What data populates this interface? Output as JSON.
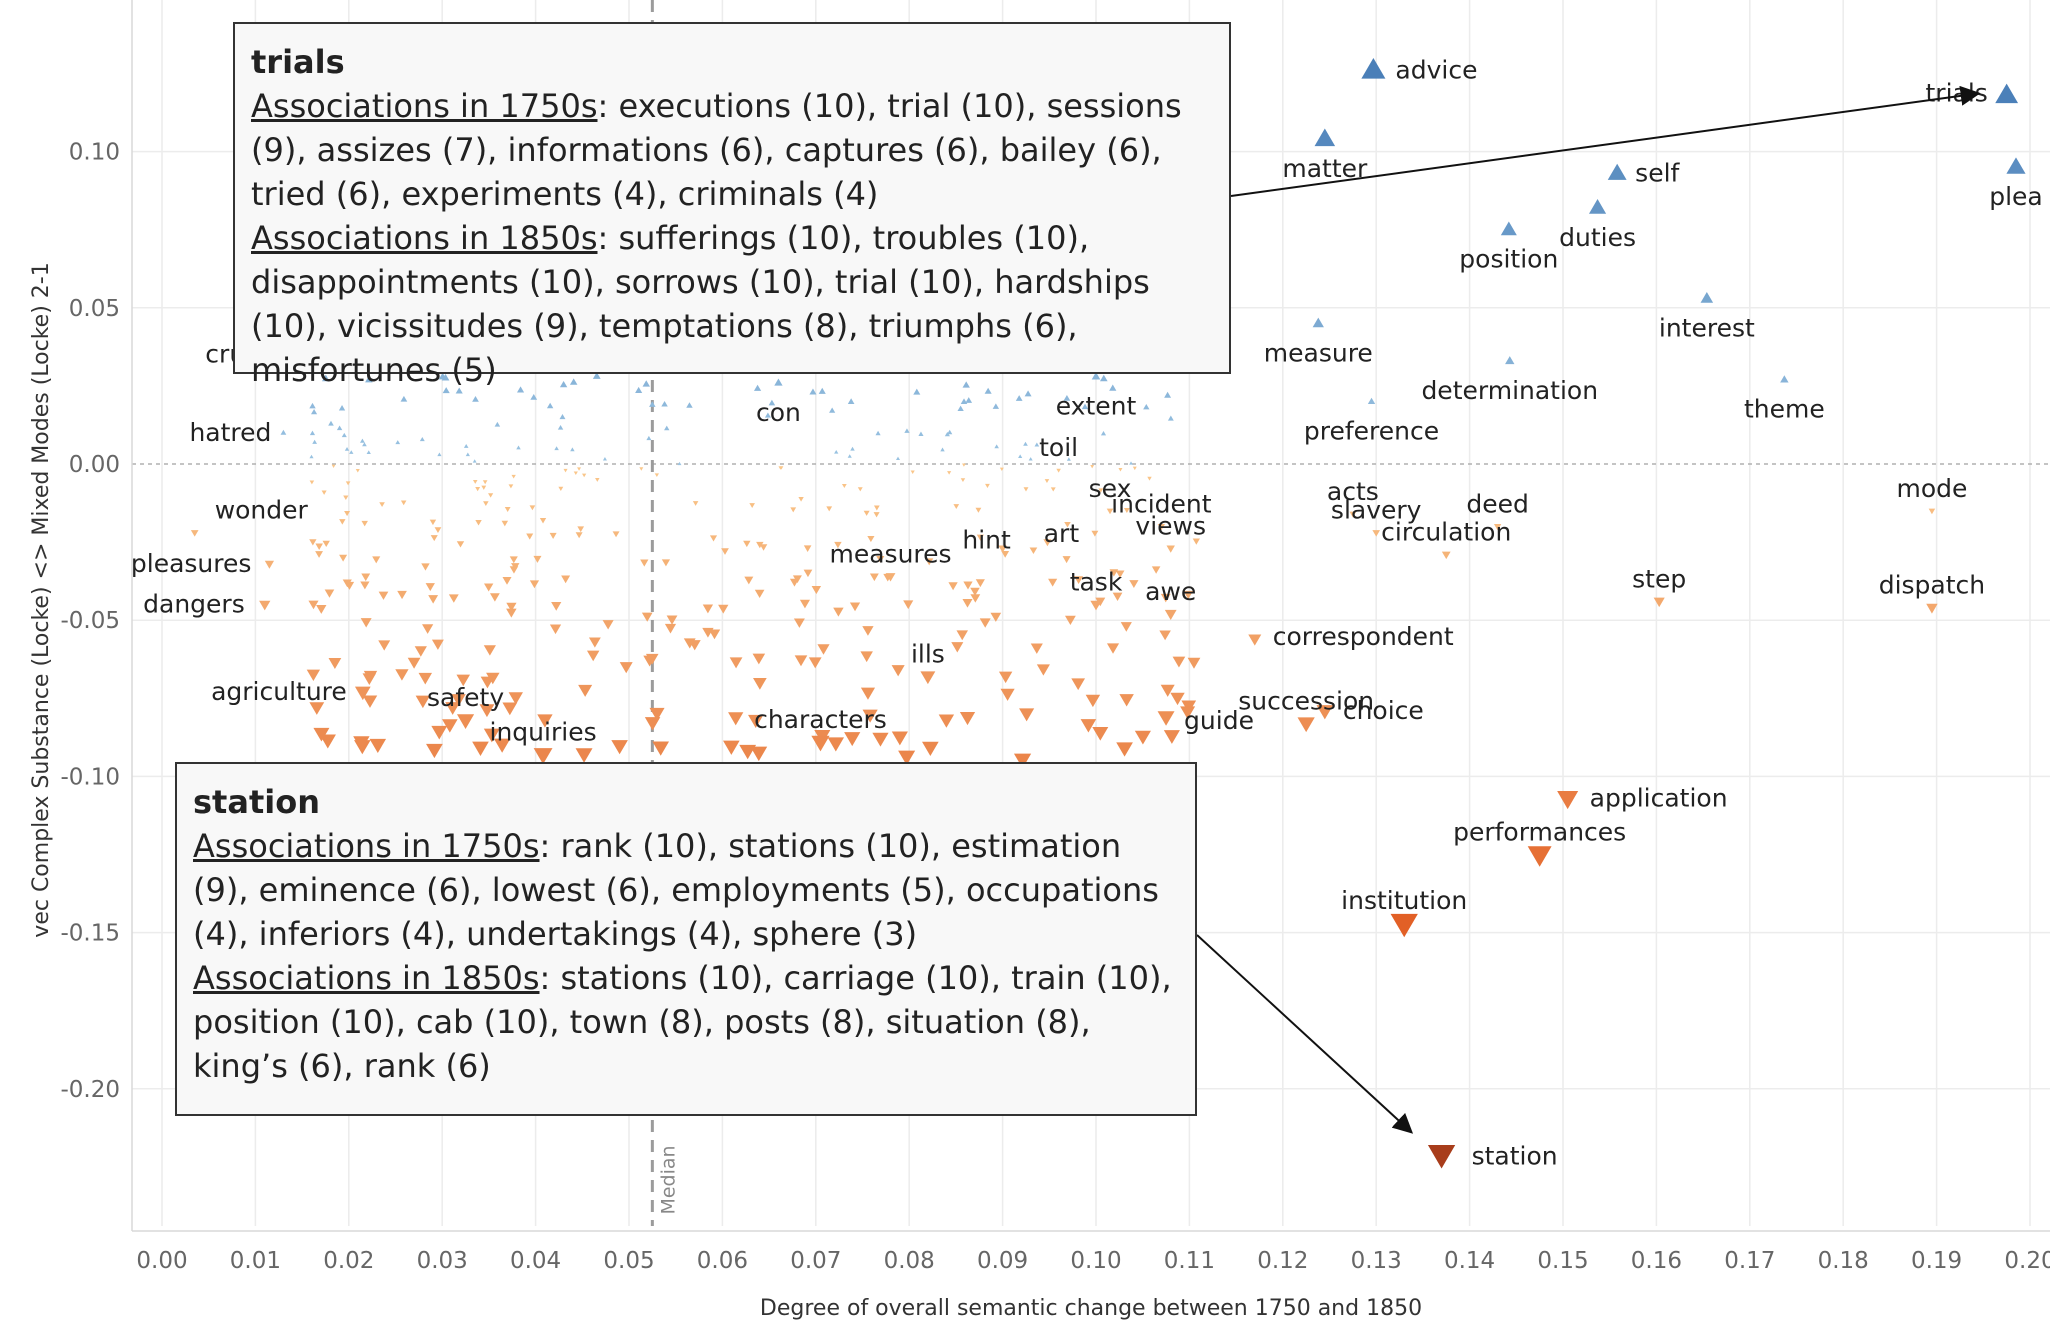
{
  "chart_data": {
    "type": "scatter",
    "xlabel": "Degree of overall semantic change between 1750 and 1850",
    "ylabel": "vec Complex Substance (Locke) <> Mixed Modes (Locke) 2-1",
    "xlim": [
      0.0,
      0.2
    ],
    "ylim": [
      -0.23,
      0.14
    ],
    "x_ticks": [
      "0.00",
      "0.01",
      "0.02",
      "0.03",
      "0.04",
      "0.05",
      "0.06",
      "0.07",
      "0.08",
      "0.09",
      "0.10",
      "0.11",
      "0.12",
      "0.13",
      "0.14",
      "0.15",
      "0.16",
      "0.17",
      "0.18",
      "0.19",
      "0.20"
    ],
    "y_ticks": [
      {
        "value": 0.1,
        "label": "0.10"
      },
      {
        "value": 0.05,
        "label": "0.05"
      },
      {
        "value": 0.0,
        "label": "0.00"
      },
      {
        "value": -0.05,
        "label": "-0.05"
      },
      {
        "value": -0.1,
        "label": "-0.10"
      },
      {
        "value": -0.15,
        "label": "-0.15"
      },
      {
        "value": -0.2,
        "label": "-0.20"
      }
    ],
    "grid": true,
    "median": {
      "x": 0.0525,
      "label": "Median"
    },
    "colors": {
      "positive": "#5b8fc4",
      "negative": "#f28e2b",
      "extreme": "#a83d1b",
      "grid": "#ececec"
    },
    "labeled_points": [
      {
        "word": "advice",
        "x": 0.1297,
        "y": 0.126
      },
      {
        "word": "matter",
        "x": 0.1245,
        "y": 0.104
      },
      {
        "word": "self",
        "x": 0.1558,
        "y": 0.093
      },
      {
        "word": "trials",
        "x": 0.1975,
        "y": 0.118
      },
      {
        "word": "plea",
        "x": 0.1985,
        "y": 0.095
      },
      {
        "word": "position",
        "x": 0.1442,
        "y": 0.075
      },
      {
        "word": "duties",
        "x": 0.1537,
        "y": 0.082
      },
      {
        "word": "interest",
        "x": 0.1654,
        "y": 0.053
      },
      {
        "word": "measure",
        "x": 0.1238,
        "y": 0.045
      },
      {
        "word": "determination",
        "x": 0.1443,
        "y": 0.033
      },
      {
        "word": "theme",
        "x": 0.1737,
        "y": 0.027
      },
      {
        "word": "preference",
        "x": 0.1295,
        "y": 0.02
      },
      {
        "word": "cruelty",
        "x": 0.015,
        "y": 0.035
      },
      {
        "word": "hatred",
        "x": 0.013,
        "y": 0.01
      },
      {
        "word": "con",
        "x": 0.066,
        "y": 0.026
      },
      {
        "word": "extent",
        "x": 0.1,
        "y": 0.028
      },
      {
        "word": "toil",
        "x": 0.096,
        "y": -0.002
      },
      {
        "word": "sex",
        "x": 0.1015,
        "y": -0.015
      },
      {
        "word": "incident",
        "x": 0.107,
        "y": -0.02
      },
      {
        "word": "acts",
        "x": 0.1275,
        "y": -0.016
      },
      {
        "word": "deed",
        "x": 0.143,
        "y": -0.02
      },
      {
        "word": "mode",
        "x": 0.1895,
        "y": -0.015
      },
      {
        "word": "wonder",
        "x": 0.0035,
        "y": -0.022
      },
      {
        "word": "hint",
        "x": 0.09,
        "y": -0.027
      },
      {
        "word": "art",
        "x": 0.0948,
        "y": -0.025
      },
      {
        "word": "views",
        "x": 0.108,
        "y": -0.027
      },
      {
        "word": "slavery",
        "x": 0.13,
        "y": -0.022
      },
      {
        "word": "pleasures",
        "x": 0.0115,
        "y": -0.032
      },
      {
        "word": "circulation",
        "x": 0.1375,
        "y": -0.029
      },
      {
        "word": "measures",
        "x": 0.078,
        "y": -0.036
      },
      {
        "word": "dangers",
        "x": 0.011,
        "y": -0.045
      },
      {
        "word": "task",
        "x": 0.1,
        "y": -0.045
      },
      {
        "word": "awe",
        "x": 0.108,
        "y": -0.048
      },
      {
        "word": "step",
        "x": 0.1603,
        "y": -0.044
      },
      {
        "word": "dispatch",
        "x": 0.1895,
        "y": -0.046
      },
      {
        "word": "correspondent",
        "x": 0.117,
        "y": -0.056
      },
      {
        "word": "ills",
        "x": 0.082,
        "y": -0.068
      },
      {
        "word": "agriculture",
        "x": 0.0215,
        "y": -0.073
      },
      {
        "word": "safety",
        "x": 0.0325,
        "y": -0.082
      },
      {
        "word": "guide",
        "x": 0.1075,
        "y": -0.081
      },
      {
        "word": "choice",
        "x": 0.1245,
        "y": -0.079
      },
      {
        "word": "succession",
        "x": 0.1225,
        "y": -0.083
      },
      {
        "word": "characters",
        "x": 0.0705,
        "y": -0.089
      },
      {
        "word": "inquiries",
        "x": 0.0408,
        "y": -0.093
      },
      {
        "word": "application",
        "x": 0.1505,
        "y": -0.107
      },
      {
        "word": "performances",
        "x": 0.1475,
        "y": -0.125
      },
      {
        "word": "institution",
        "x": 0.133,
        "y": -0.147
      },
      {
        "word": "station",
        "x": 0.137,
        "y": -0.221
      }
    ],
    "annotations": [
      {
        "word": "trials",
        "title": "trials",
        "heading_1750": "Associations in 1750s",
        "text_1750": ": executions (10), trial (10), sessions (9), assizes (7), informations (6), captures (6), bailey (6), tried (6), experiments (4), criminals (4)",
        "heading_1850": "Associations in 1850s",
        "text_1850": ": sufferings (10), troubles (10), disappointments (10), sorrows (10), trial (10), hardships (10), vicissitudes (9), temptations (8), triumphs (6), misfortunes (5)"
      },
      {
        "word": "station",
        "title": "station",
        "heading_1750": "Associations in 1750s",
        "text_1750": ": rank (10), stations (10), estimation (9), eminence (6), lowest (6), employments (5), occupations (4), inferiors (4), undertakings (4), sphere (3)",
        "heading_1850": "Associations in 1850s",
        "text_1850": ": stations (10), carriage (10), train (10), position (10), cab (10), town (8), posts (8), situation (8), king’s (6), rank (6)"
      }
    ]
  }
}
